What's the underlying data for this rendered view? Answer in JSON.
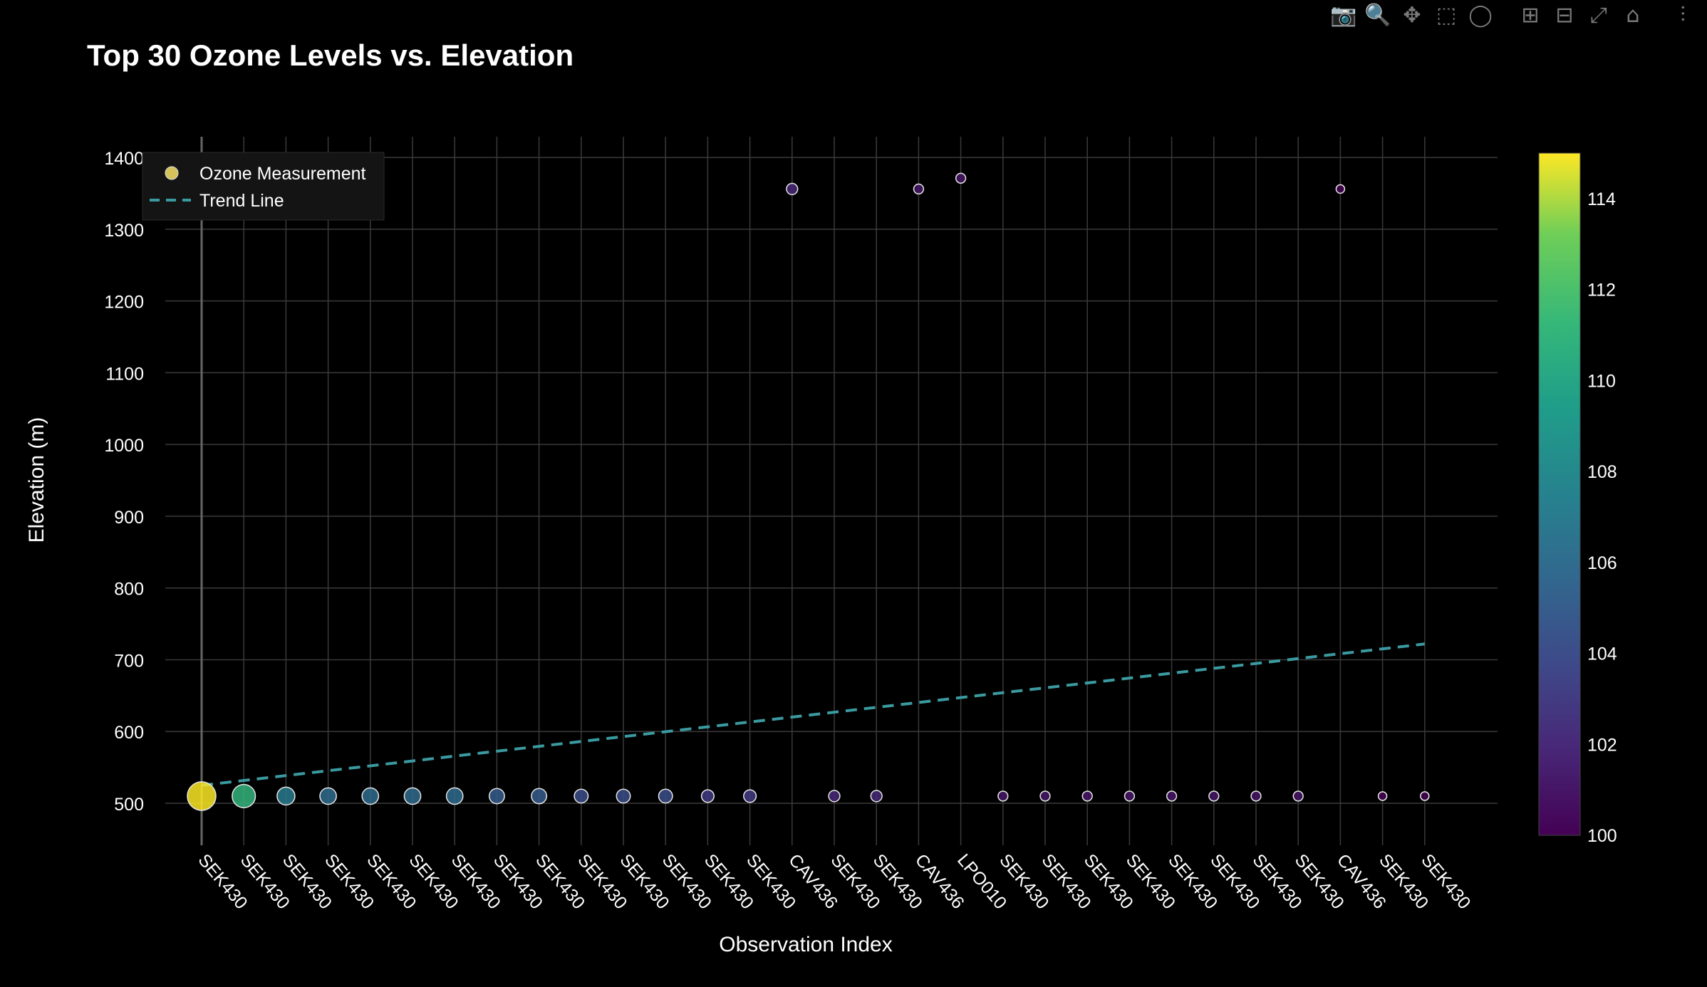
{
  "modebar": {
    "buttons": [
      {
        "name": "camera-icon",
        "glyph": "📷"
      },
      {
        "name": "zoom-icon",
        "glyph": "🔍",
        "active": true
      },
      {
        "name": "pan-icon",
        "glyph": "✥"
      },
      {
        "name": "box-select-icon",
        "glyph": "⬚"
      },
      {
        "name": "lasso-select-icon",
        "glyph": "◯"
      },
      {
        "name": "gap"
      },
      {
        "name": "zoom-in-icon",
        "glyph": "⊞"
      },
      {
        "name": "zoom-out-icon",
        "glyph": "⊟"
      },
      {
        "name": "autoscale-icon",
        "glyph": "⤢"
      },
      {
        "name": "reset-axes-icon",
        "glyph": "⌂"
      },
      {
        "name": "gap"
      },
      {
        "name": "plotly-logo-icon",
        "glyph": "⫶"
      }
    ]
  },
  "chart_data": {
    "type": "scatter",
    "title": "Top 30 Ozone Levels vs. Elevation",
    "xlabel": "Observation Index",
    "ylabel": "Elevation (m)",
    "categories": [
      "SEK430",
      "SEK430",
      "SEK430",
      "SEK430",
      "SEK430",
      "SEK430",
      "SEK430",
      "SEK430",
      "SEK430",
      "SEK430",
      "SEK430",
      "SEK430",
      "SEK430",
      "SEK430",
      "CAV436",
      "SEK430",
      "SEK430",
      "CAV436",
      "LPO010",
      "SEK430",
      "SEK430",
      "SEK430",
      "SEK430",
      "SEK430",
      "SEK430",
      "SEK430",
      "SEK430",
      "CAV436",
      "SEK430",
      "SEK430"
    ],
    "y_ticks": [
      500,
      600,
      700,
      800,
      900,
      1000,
      1100,
      1200,
      1300,
      1400
    ],
    "ylim": [
      470,
      1425
    ],
    "grid": true,
    "legend": {
      "position": "top-left",
      "entries": [
        "Ozone Measurement",
        "Trend Line"
      ]
    },
    "series": [
      {
        "name": "Ozone Measurement",
        "kind": "markers",
        "elevation": [
          510,
          510,
          510,
          510,
          510,
          510,
          510,
          510,
          510,
          510,
          510,
          510,
          510,
          510,
          1356,
          510,
          510,
          1356,
          1371,
          510,
          510,
          510,
          510,
          510,
          510,
          510,
          510,
          1356,
          510,
          510
        ],
        "ozone": [
          115,
          111,
          107,
          106,
          106,
          106,
          106,
          105,
          105,
          104,
          104,
          104,
          103,
          103,
          102,
          102,
          102,
          101,
          101,
          101,
          101,
          101,
          101,
          101,
          101,
          101,
          101,
          100,
          100,
          100
        ]
      },
      {
        "name": "Trend Line",
        "kind": "dashed-line",
        "start": {
          "index": 0,
          "elevation": 525
        },
        "end": {
          "index": 29,
          "elevation": 722
        },
        "color": "#3b9aa0"
      }
    ],
    "colorbar": {
      "colorscale": "viridis",
      "range": [
        100,
        115
      ],
      "ticks": [
        100,
        102,
        104,
        106,
        108,
        110,
        112,
        114
      ]
    }
  }
}
